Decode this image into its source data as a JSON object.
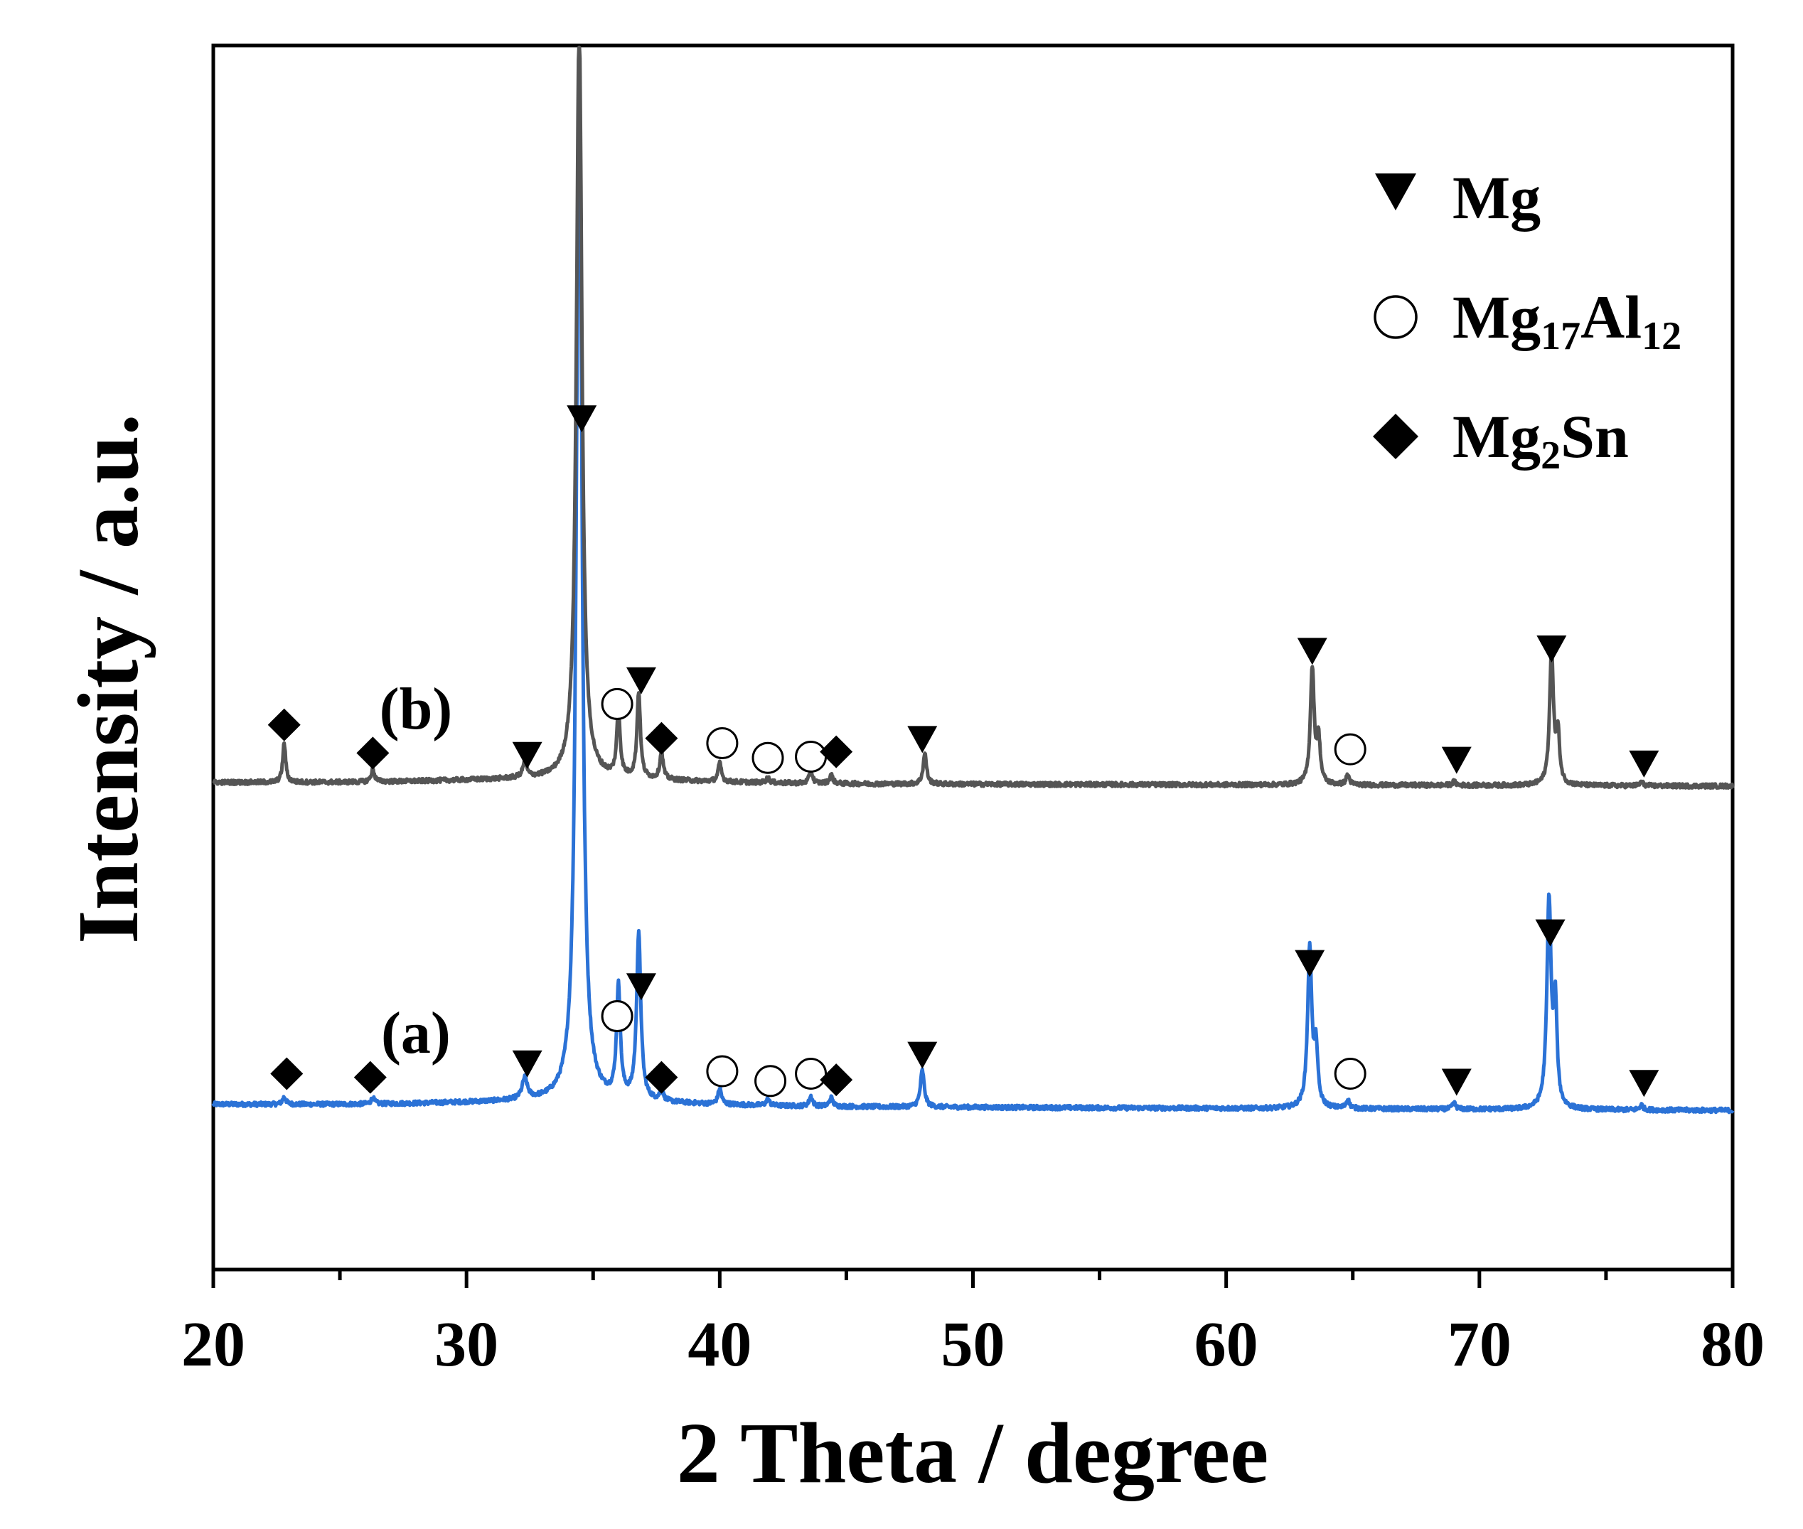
{
  "chart_data": {
    "type": "line",
    "title": "",
    "xlabel": "2 Theta / degree",
    "ylabel": "Intensity / a.u.",
    "xlim": [
      20,
      80
    ],
    "ylim": [
      0,
      100
    ],
    "x_ticks": [
      20,
      30,
      40,
      50,
      60,
      70,
      80
    ],
    "x_tick_labels": [
      "20",
      "30",
      "40",
      "50",
      "60",
      "70",
      "80"
    ],
    "y_ticks_shown": false,
    "grid": false,
    "legend_position": "top-right",
    "legend": [
      {
        "marker": "down-triangle",
        "label": "Mg",
        "html": "Mg"
      },
      {
        "marker": "open-circle",
        "label": "Mg17Al12",
        "html": "Mg<tspan>17</tspan>Al<tspan>12</tspan>"
      },
      {
        "marker": "diamond",
        "label": "Mg2Sn",
        "html": "Mg<tspan>2</tspan>Sn"
      }
    ],
    "legend_labels": {
      "mg": "Mg",
      "mg17al12_base1": "Mg",
      "mg17al12_sub1": "17",
      "mg17al12_base2": "Al",
      "mg17al12_sub2": "12",
      "mg2sn_base1": "Mg",
      "mg2sn_sub1": "2",
      "mg2sn_base2": "Sn"
    },
    "series": [
      {
        "name": "(a)",
        "color": "#2B72D6",
        "baseline": 13.5,
        "baseline_end": 13.0,
        "peaks": [
          {
            "x": 22.8,
            "h": 0.6,
            "w": 0.08
          },
          {
            "x": 26.3,
            "h": 0.5,
            "w": 0.08
          },
          {
            "x": 32.3,
            "h": 1.7,
            "w": 0.12
          },
          {
            "x": 34.45,
            "h": 86.0,
            "w": 0.13
          },
          {
            "x": 36.0,
            "h": 9.0,
            "w": 0.09
          },
          {
            "x": 36.8,
            "h": 13.5,
            "w": 0.1
          },
          {
            "x": 37.7,
            "h": 0.9,
            "w": 0.08
          },
          {
            "x": 40.0,
            "h": 1.3,
            "w": 0.08
          },
          {
            "x": 41.9,
            "h": 0.5,
            "w": 0.08
          },
          {
            "x": 43.6,
            "h": 0.8,
            "w": 0.08
          },
          {
            "x": 44.4,
            "h": 0.7,
            "w": 0.08
          },
          {
            "x": 48.0,
            "h": 3.0,
            "w": 0.09
          },
          {
            "x": 63.3,
            "h": 13.0,
            "w": 0.1
          },
          {
            "x": 63.55,
            "h": 4.5,
            "w": 0.08
          },
          {
            "x": 64.8,
            "h": 0.7,
            "w": 0.08
          },
          {
            "x": 69.0,
            "h": 0.5,
            "w": 0.08
          },
          {
            "x": 72.75,
            "h": 17.0,
            "w": 0.1
          },
          {
            "x": 73.0,
            "h": 8.0,
            "w": 0.08
          },
          {
            "x": 76.4,
            "h": 0.4,
            "w": 0.08
          }
        ]
      },
      {
        "name": "(b)",
        "color": "#555555",
        "baseline": 39.8,
        "baseline_end": 39.5,
        "peaks": [
          {
            "x": 22.8,
            "h": 3.2,
            "w": 0.07
          },
          {
            "x": 26.3,
            "h": 1.0,
            "w": 0.08
          },
          {
            "x": 32.3,
            "h": 1.2,
            "w": 0.1
          },
          {
            "x": 34.45,
            "h": 62.0,
            "w": 0.13
          },
          {
            "x": 36.0,
            "h": 5.3,
            "w": 0.08
          },
          {
            "x": 36.8,
            "h": 7.0,
            "w": 0.08
          },
          {
            "x": 37.7,
            "h": 2.2,
            "w": 0.08
          },
          {
            "x": 40.0,
            "h": 1.5,
            "w": 0.08
          },
          {
            "x": 41.9,
            "h": 0.4,
            "w": 0.08
          },
          {
            "x": 43.6,
            "h": 1.0,
            "w": 0.08
          },
          {
            "x": 44.4,
            "h": 0.7,
            "w": 0.08
          },
          {
            "x": 48.1,
            "h": 2.5,
            "w": 0.08
          },
          {
            "x": 63.4,
            "h": 9.5,
            "w": 0.09
          },
          {
            "x": 63.65,
            "h": 3.5,
            "w": 0.08
          },
          {
            "x": 64.8,
            "h": 0.8,
            "w": 0.08
          },
          {
            "x": 69.0,
            "h": 0.3,
            "w": 0.08
          },
          {
            "x": 72.85,
            "h": 11.0,
            "w": 0.09
          },
          {
            "x": 73.1,
            "h": 4.0,
            "w": 0.08
          },
          {
            "x": 76.4,
            "h": 0.3,
            "w": 0.08
          }
        ]
      }
    ],
    "curve_labels": [
      {
        "text": "(a)",
        "x": 28.0,
        "y": 17.7
      },
      {
        "text": "(b)",
        "x": 28.0,
        "y": 44.2
      }
    ],
    "markers": [
      {
        "series": "(a)",
        "type": "diamond",
        "x": 22.9,
        "y": 16.0
      },
      {
        "series": "(a)",
        "type": "diamond",
        "x": 26.2,
        "y": 15.7
      },
      {
        "series": "(a)",
        "type": "down-triangle",
        "x": 32.4,
        "y": 16.8
      },
      {
        "series": "(a)",
        "type": "open-circle",
        "x": 35.95,
        "y": 20.7
      },
      {
        "series": "(a)",
        "type": "down-triangle",
        "x": 36.9,
        "y": 23.1
      },
      {
        "series": "(a)",
        "type": "diamond",
        "x": 37.7,
        "y": 15.7
      },
      {
        "series": "(a)",
        "type": "open-circle",
        "x": 40.1,
        "y": 16.2
      },
      {
        "series": "(a)",
        "type": "open-circle",
        "x": 42.0,
        "y": 15.4
      },
      {
        "series": "(a)",
        "type": "open-circle",
        "x": 43.6,
        "y": 16.0
      },
      {
        "series": "(a)",
        "type": "diamond",
        "x": 44.6,
        "y": 15.5
      },
      {
        "series": "(a)",
        "type": "down-triangle",
        "x": 48.0,
        "y": 17.5
      },
      {
        "series": "(a)",
        "type": "down-triangle",
        "x": 63.3,
        "y": 25.0
      },
      {
        "series": "(a)",
        "type": "open-circle",
        "x": 64.9,
        "y": 16.0
      },
      {
        "series": "(a)",
        "type": "down-triangle",
        "x": 69.1,
        "y": 15.3
      },
      {
        "series": "(a)",
        "type": "down-triangle",
        "x": 72.8,
        "y": 27.5
      },
      {
        "series": "(a)",
        "type": "down-triangle",
        "x": 76.5,
        "y": 15.2
      },
      {
        "series": "(b)",
        "type": "diamond",
        "x": 22.8,
        "y": 44.5
      },
      {
        "series": "(b)",
        "type": "diamond",
        "x": 26.3,
        "y": 42.2
      },
      {
        "series": "(b)",
        "type": "down-triangle",
        "x": 32.4,
        "y": 42.0
      },
      {
        "series": "(b)",
        "type": "down-triangle",
        "x": 34.55,
        "y": 69.5
      },
      {
        "series": "(b)",
        "type": "open-circle",
        "x": 35.95,
        "y": 46.2
      },
      {
        "series": "(b)",
        "type": "down-triangle",
        "x": 36.9,
        "y": 48.1
      },
      {
        "series": "(b)",
        "type": "diamond",
        "x": 37.7,
        "y": 43.4
      },
      {
        "series": "(b)",
        "type": "open-circle",
        "x": 40.1,
        "y": 43.0
      },
      {
        "series": "(b)",
        "type": "open-circle",
        "x": 41.9,
        "y": 41.8
      },
      {
        "series": "(b)",
        "type": "open-circle",
        "x": 43.6,
        "y": 41.9
      },
      {
        "series": "(b)",
        "type": "diamond",
        "x": 44.6,
        "y": 42.3
      },
      {
        "series": "(b)",
        "type": "down-triangle",
        "x": 48.0,
        "y": 43.3
      },
      {
        "series": "(b)",
        "type": "down-triangle",
        "x": 63.4,
        "y": 50.5
      },
      {
        "series": "(b)",
        "type": "open-circle",
        "x": 64.9,
        "y": 42.5
      },
      {
        "series": "(b)",
        "type": "down-triangle",
        "x": 69.1,
        "y": 41.6
      },
      {
        "series": "(b)",
        "type": "down-triangle",
        "x": 72.85,
        "y": 50.7
      },
      {
        "series": "(b)",
        "type": "down-triangle",
        "x": 76.5,
        "y": 41.3
      }
    ]
  }
}
